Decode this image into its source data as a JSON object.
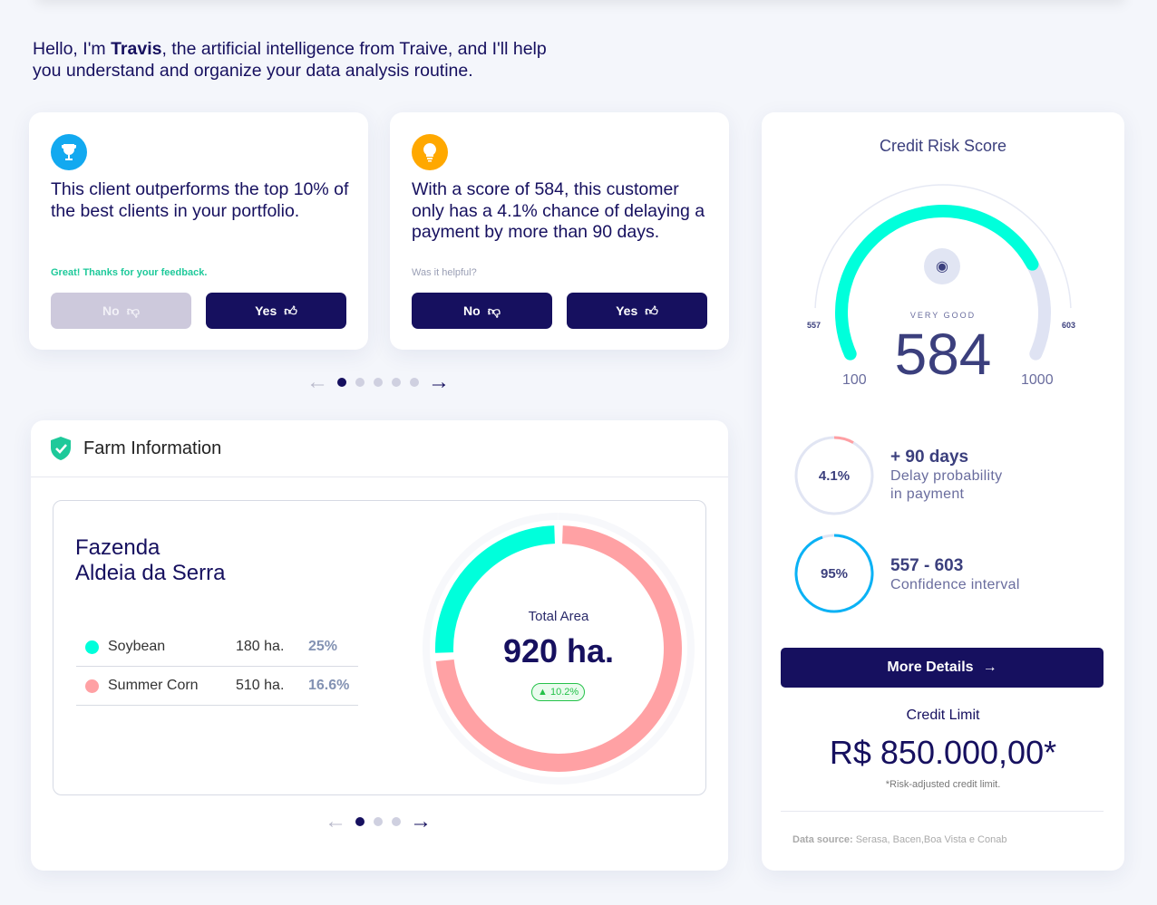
{
  "intro": {
    "prefix": "Hello, I'm ",
    "name": "Travis",
    "suffix": ", the artificial intelligence from Traive, and I'll help you understand and organize your data analysis routine."
  },
  "insights": [
    {
      "icon": "trophy-icon",
      "color": "#12a9f0",
      "text": "This client outperforms the top 10% of the best clients in your portfolio.",
      "feedback": "Great! Thanks for your feedback.",
      "feedback_color": "#1ec99a",
      "no": "No",
      "yes": "Yes"
    },
    {
      "icon": "lightbulb-icon",
      "color": "#ffa800",
      "text": "With a score of 584, this customer only has a 4.1% chance of delaying a payment by more than 90 days.",
      "feedback": "Was it helpful?",
      "feedback_color": "#9a9fb5",
      "no": "No",
      "yes": "Yes"
    }
  ],
  "insight_pager": {
    "pages": 5,
    "current": 1
  },
  "farm": {
    "title": "Farm Information",
    "name_line1": "Fazenda",
    "name_line2": "Aldeia da Serra",
    "crops": [
      {
        "name": "Soybean",
        "area": "180 ha.",
        "pct": "25%",
        "color": "#00ffdb"
      },
      {
        "name": "Summer Corn",
        "area": "510 ha.",
        "pct": "16.6%",
        "color": "#ffa1a4"
      }
    ],
    "total_label": "Total Area",
    "total": "920 ha.",
    "change": "10.2%",
    "pager": {
      "pages": 3,
      "current": 1
    }
  },
  "credit": {
    "title": "Credit Risk Score",
    "rating": "VERY GOOD",
    "score": "584",
    "min": "100",
    "max": "1000",
    "ci_low": "557",
    "ci_high": "603",
    "gauge_fill": 0.77,
    "delay": {
      "value": "4.1%",
      "fraction": 0.041,
      "heading": "+ 90 days",
      "line1": "Delay probability",
      "line2": "in payment"
    },
    "confidence": {
      "value": "95%",
      "fraction": 0.95,
      "heading": "557 - 603",
      "line1": "Confidence interval"
    },
    "more": "More Details",
    "limit_label": "Credit Limit",
    "limit": "R$ 850.000,00*",
    "limit_note": "*Risk-adjusted credit limit.",
    "source_label": "Data source:",
    "source": " Serasa, Bacen,Boa Vista e Conab"
  }
}
